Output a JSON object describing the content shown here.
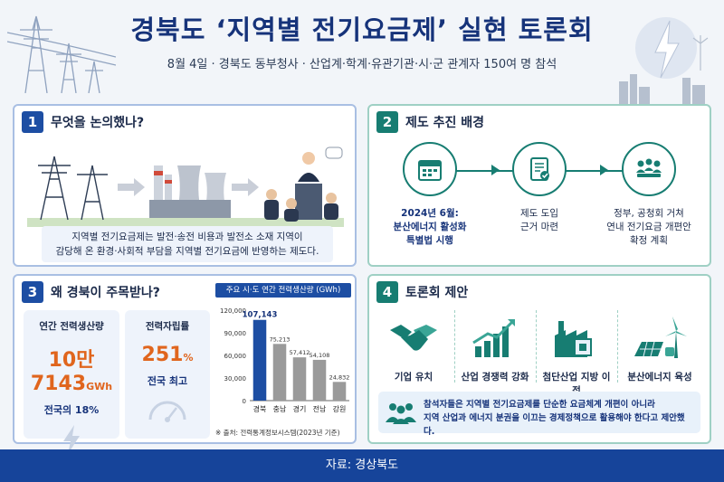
{
  "header": {
    "title": "경북도 ‘지역별 전기요금제’ 실현 토론회",
    "subtitle": "8월 4일 · 경북도 동부청사 · 산업계·학계·유관기관·시·군 관계자 150여 명 참석"
  },
  "section1": {
    "number": "1",
    "title": "무엇을 논의했나?",
    "desc_line1": "지역별 전기요금제는 발전·송전 비용과 발전소 소재 지역이",
    "desc_line2": "감당해 온 환경·사회적 부담을 지역별 전기요금에 반영하는 제도다."
  },
  "section2": {
    "number": "2",
    "title": "제도 추진 배경",
    "steps": [
      {
        "text": "2024년 6월:\n분산에너지 활성화\n특별법 시행",
        "icon": "calendar-icon"
      },
      {
        "text": "제도 도입\n근거 마련",
        "icon": "document-check-icon"
      },
      {
        "text": "정부, 공청회 거쳐\n연내 전기요금 개편안\n확정 계획",
        "icon": "meeting-icon"
      }
    ]
  },
  "section3": {
    "number": "3",
    "title": "왜 경북이 주목받나?",
    "stat1": {
      "label": "연간 전력생산량",
      "value": "10만 7143",
      "unit": "GWh",
      "sub": "전국의 18%"
    },
    "stat2": {
      "label": "전력자립률",
      "value": "251",
      "unit": "%",
      "sub": "전국 최고"
    },
    "chart_title": "주요 시·도 연간 전력생산량 (GWh)",
    "chart_note": "※ 출처: 전력통계정보시스템(2023년 기준)"
  },
  "section4": {
    "number": "4",
    "title": "토론회 제안",
    "items": [
      {
        "label": "기업 유치",
        "icon": "handshake-icon"
      },
      {
        "label": "산업 경쟁력 강화",
        "icon": "growth-chart-icon"
      },
      {
        "label": "첨단산업 지방 이전",
        "icon": "factory-chip-icon"
      },
      {
        "label": "분산에너지 육성",
        "icon": "renewable-energy-icon"
      }
    ],
    "proposal_line1": "참석자들은 지역별 전기요금제를 단순한 요금체계 개편이 아니라",
    "proposal_line2": "지역 산업과 에너지 분권을 이끄는 경제정책으로 활용해야 한다고 제안했다."
  },
  "footer": {
    "source": "자료: 경상북도"
  },
  "colors": {
    "navy": "#16337a",
    "blue": "#1d4ea3",
    "teal": "#177d72",
    "orange": "#e0651d",
    "gray_bar": "#9a9a9a"
  },
  "chart_data": {
    "type": "bar",
    "title": "주요 시·도 연간 전력생산량 (GWh)",
    "categories": [
      "경북",
      "충남",
      "경기",
      "전남",
      "강원"
    ],
    "values": [
      107143,
      75213,
      57412,
      54108,
      24832
    ],
    "value_labels": [
      "107,143",
      "75,213",
      "57,412",
      "54,108",
      "24,832"
    ],
    "yticks": [
      "0",
      "30,000",
      "60,000",
      "90,000",
      "120,000"
    ],
    "ylim": [
      0,
      120000
    ],
    "highlight_index": 0,
    "grid": false
  }
}
